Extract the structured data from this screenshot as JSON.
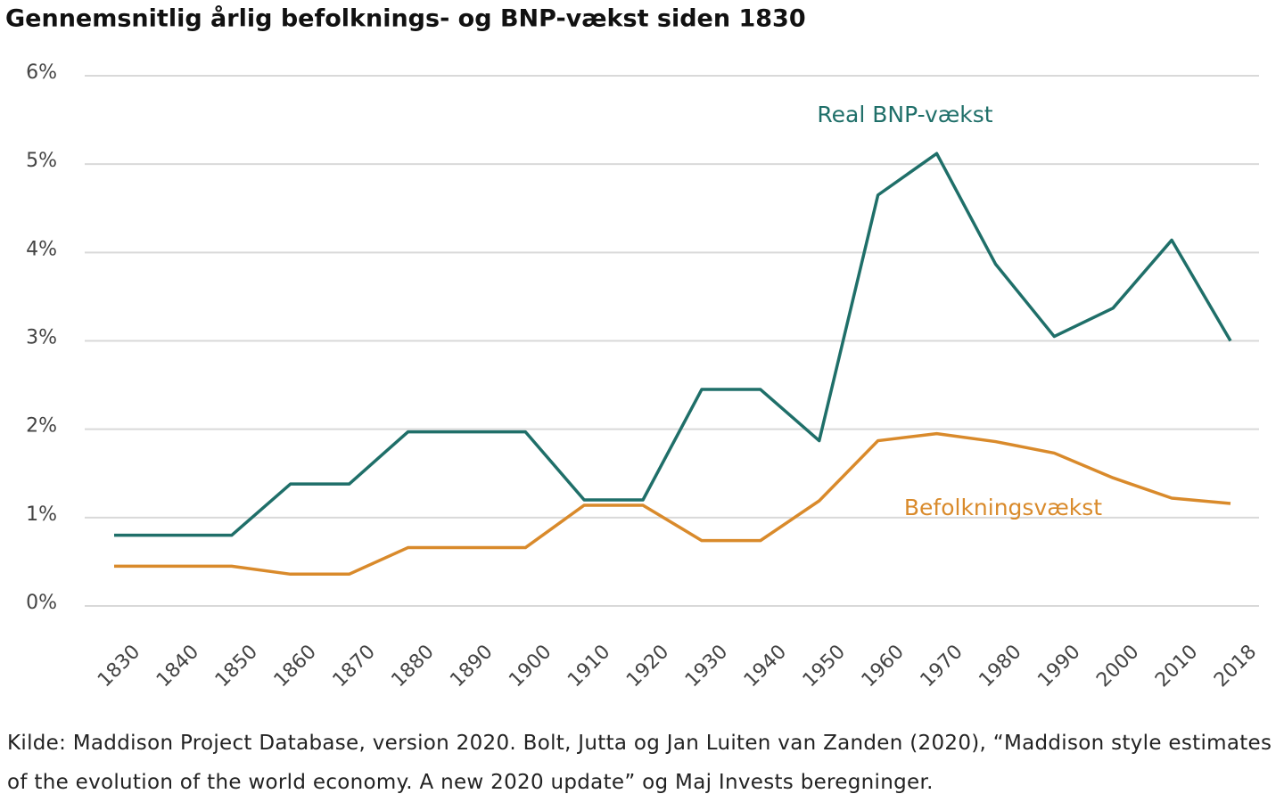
{
  "chart_data": {
    "type": "line",
    "title": "Gennemsnitlig årlig befolknings- og BNP-vækst siden 1830",
    "categories": [
      "1830",
      "1840",
      "1850",
      "1860",
      "1870",
      "1880",
      "1890",
      "1900",
      "1910",
      "1920",
      "1930",
      "1940",
      "1950",
      "1960",
      "1970",
      "1980",
      "1990",
      "2000",
      "2010",
      "2018"
    ],
    "series": [
      {
        "name": "Real BNP-vækst",
        "color": "#1f6f69",
        "values": [
          0.8,
          0.8,
          0.8,
          1.38,
          1.38,
          1.97,
          1.97,
          1.97,
          1.2,
          1.2,
          2.45,
          2.45,
          1.87,
          4.65,
          5.12,
          3.87,
          3.05,
          3.37,
          4.14,
          3.0
        ]
      },
      {
        "name": "Befolkningsvækst",
        "color": "#d98a2b",
        "values": [
          0.45,
          0.45,
          0.45,
          0.36,
          0.36,
          0.66,
          0.66,
          0.66,
          1.14,
          1.14,
          0.74,
          0.74,
          1.19,
          1.87,
          1.95,
          1.86,
          1.73,
          1.45,
          1.22,
          1.16
        ]
      }
    ],
    "ylim": [
      0,
      6
    ],
    "yticks": [
      {
        "value": 0,
        "label": "0%"
      },
      {
        "value": 1,
        "label": "1%"
      },
      {
        "value": 2,
        "label": "2%"
      },
      {
        "value": 3,
        "label": "3%"
      },
      {
        "value": 4,
        "label": "4%"
      },
      {
        "value": 5,
        "label": "5%"
      },
      {
        "value": 6,
        "label": "6%"
      }
    ],
    "grid": true,
    "source": "Kilde: Maddison Project Database, version 2020. Bolt, Jutta og Jan Luiten van Zanden (2020), “Maddison style estimates of the evolution of the world economy. A new 2020 update” og Maj Invests beregninger."
  }
}
